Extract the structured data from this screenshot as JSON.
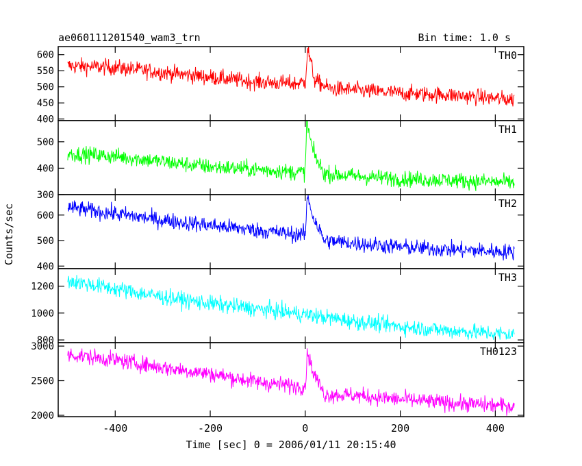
{
  "chart_data": {
    "type": "line",
    "title": "ae060111201540_wam3_trn",
    "bin_time_label": "Bin time: 1.0 s",
    "xlabel": "Time [sec] 0 = 2006/01/11 20:15:40",
    "ylabel": "Counts/sec",
    "xlim": [
      -520,
      460
    ],
    "data_x_range": [
      -500,
      440
    ],
    "x_ticks": [
      -400,
      -200,
      0,
      200,
      400
    ],
    "grid": false,
    "series": [
      {
        "name": "TH0",
        "color": "#ff0000",
        "ylim": [
          395,
          625
        ],
        "y_ticks": [
          400,
          450,
          500,
          550,
          600
        ],
        "y_tick_labels": [
          "400",
          "450",
          "500",
          "550",
          "600"
        ],
        "x": [
          -500,
          -400,
          -300,
          -200,
          -100,
          -20,
          0,
          5,
          20,
          50,
          100,
          200,
          300,
          440
        ],
        "values": [
          565,
          560,
          545,
          530,
          515,
          510,
          515,
          620,
          520,
          495,
          490,
          480,
          475,
          460
        ]
      },
      {
        "name": "TH1",
        "color": "#00ff00",
        "ylim": [
          300,
          580
        ],
        "y_ticks": [
          300,
          400,
          500
        ],
        "y_tick_labels": [
          "300",
          "400",
          "500"
        ],
        "x": [
          -500,
          -400,
          -300,
          -200,
          -100,
          -20,
          0,
          3,
          15,
          25,
          40,
          100,
          200,
          300,
          440
        ],
        "values": [
          455,
          445,
          425,
          405,
          395,
          385,
          385,
          580,
          470,
          430,
          380,
          370,
          360,
          355,
          345
        ]
      },
      {
        "name": "TH2",
        "color": "#0000ff",
        "ylim": [
          390,
          680
        ],
        "y_ticks": [
          400,
          500,
          600
        ],
        "y_tick_labels": [
          "400",
          "500",
          "600"
        ],
        "x": [
          -500,
          -400,
          -300,
          -200,
          -100,
          -20,
          0,
          5,
          15,
          40,
          100,
          200,
          300,
          440
        ],
        "values": [
          630,
          605,
          580,
          560,
          540,
          525,
          525,
          680,
          600,
          500,
          490,
          475,
          465,
          455
        ]
      },
      {
        "name": "TH3",
        "color": "#00ffff",
        "ylim": [
          780,
          1330
        ],
        "y_ticks": [
          800,
          1000,
          1200
        ],
        "y_tick_labels": [
          "800",
          "1000",
          "1200"
        ],
        "x": [
          -500,
          -400,
          -300,
          -200,
          -100,
          0,
          100,
          200,
          300,
          440
        ],
        "values": [
          1240,
          1180,
          1120,
          1070,
          1030,
          990,
          940,
          900,
          870,
          840
        ]
      },
      {
        "name": "TH0123",
        "color": "#ff00ff",
        "ylim": [
          1980,
          3050
        ],
        "y_ticks": [
          2000,
          2500,
          3000
        ],
        "y_tick_labels": [
          "2000",
          "2500",
          "3000"
        ],
        "x": [
          -500,
          -400,
          -300,
          -200,
          -100,
          -20,
          0,
          5,
          15,
          40,
          100,
          200,
          300,
          440
        ],
        "values": [
          2880,
          2800,
          2690,
          2600,
          2480,
          2420,
          2420,
          2930,
          2650,
          2300,
          2290,
          2230,
          2180,
          2130
        ]
      }
    ]
  }
}
